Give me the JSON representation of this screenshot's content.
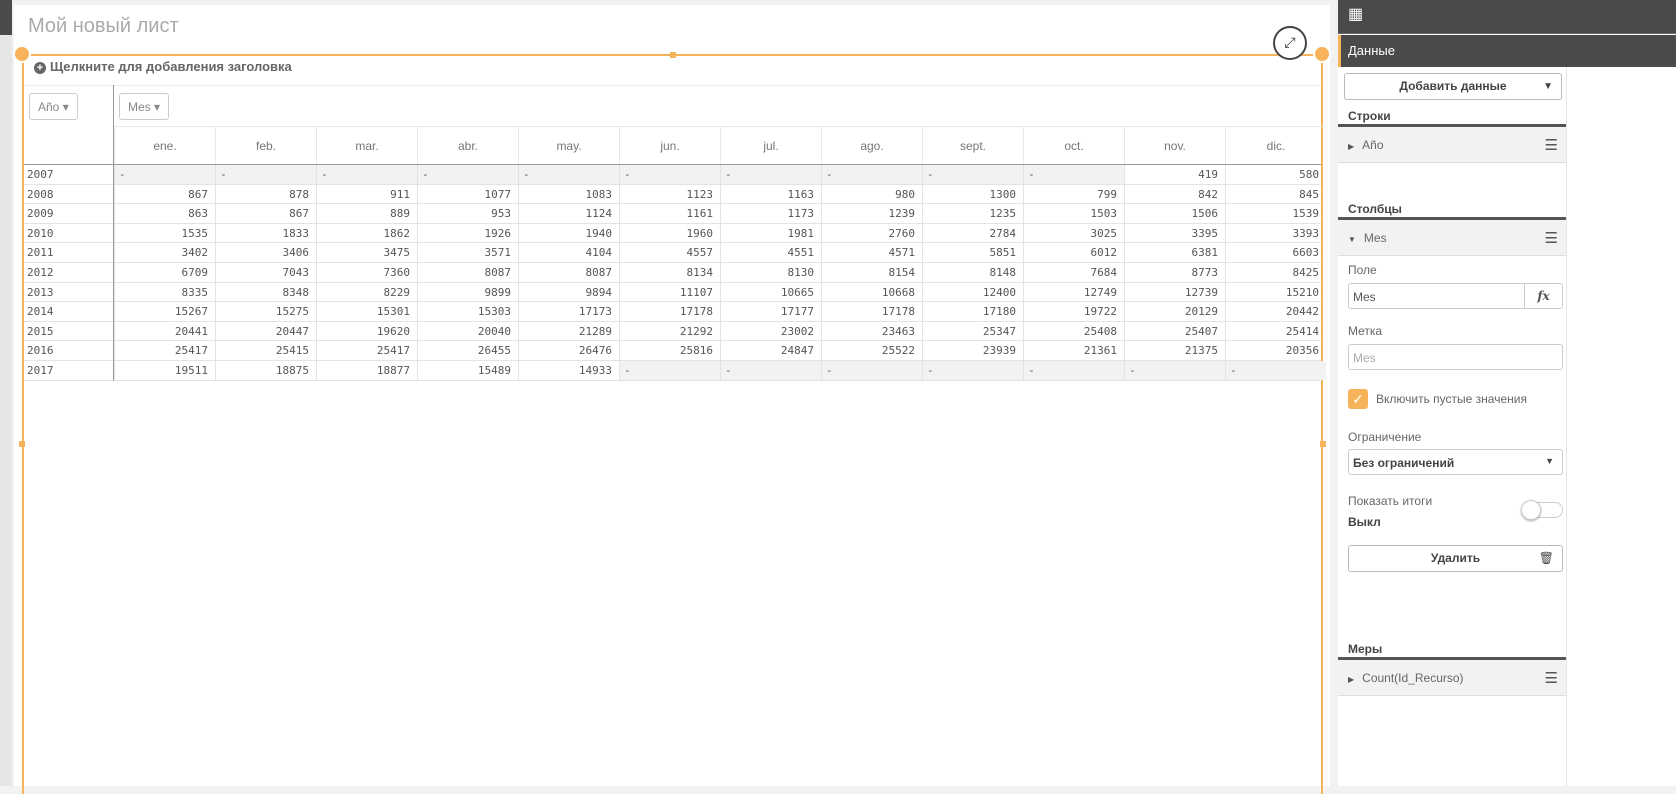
{
  "sheet": {
    "title": "Мой новый лист",
    "add_title": "Щелкните для добавления заголовка"
  },
  "accent": "#f7b35a",
  "pivot": {
    "row_dim": "Año",
    "col_dim": "Mes",
    "columns": [
      "ene.",
      "feb.",
      "mar.",
      "abr.",
      "may.",
      "jun.",
      "jul.",
      "ago.",
      "sept.",
      "oct.",
      "nov.",
      "dic."
    ],
    "rows": [
      {
        "year": "2007",
        "values": [
          "-",
          "-",
          "-",
          "-",
          "-",
          "-",
          "-",
          "-",
          "-",
          "-",
          "419",
          "580"
        ]
      },
      {
        "year": "2008",
        "values": [
          "867",
          "878",
          "911",
          "1077",
          "1083",
          "1123",
          "1163",
          "980",
          "1300",
          "799",
          "842",
          "845"
        ]
      },
      {
        "year": "2009",
        "values": [
          "863",
          "867",
          "889",
          "953",
          "1124",
          "1161",
          "1173",
          "1239",
          "1235",
          "1503",
          "1506",
          "1539"
        ]
      },
      {
        "year": "2010",
        "values": [
          "1535",
          "1833",
          "1862",
          "1926",
          "1940",
          "1960",
          "1981",
          "2760",
          "2784",
          "3025",
          "3395",
          "3393"
        ]
      },
      {
        "year": "2011",
        "values": [
          "3402",
          "3406",
          "3475",
          "3571",
          "4104",
          "4557",
          "4551",
          "4571",
          "5851",
          "6012",
          "6381",
          "6603"
        ]
      },
      {
        "year": "2012",
        "values": [
          "6709",
          "7043",
          "7360",
          "8087",
          "8087",
          "8134",
          "8130",
          "8154",
          "8148",
          "7684",
          "8773",
          "8425"
        ]
      },
      {
        "year": "2013",
        "values": [
          "8335",
          "8348",
          "8229",
          "9899",
          "9894",
          "11107",
          "10665",
          "10668",
          "12400",
          "12749",
          "12739",
          "15210"
        ]
      },
      {
        "year": "2014",
        "values": [
          "15267",
          "15275",
          "15301",
          "15303",
          "17173",
          "17178",
          "17177",
          "17178",
          "17180",
          "19722",
          "20129",
          "20442"
        ]
      },
      {
        "year": "2015",
        "values": [
          "20441",
          "20447",
          "19620",
          "20040",
          "21289",
          "21292",
          "23002",
          "23463",
          "25347",
          "25408",
          "25407",
          "25414"
        ]
      },
      {
        "year": "2016",
        "values": [
          "25417",
          "25415",
          "25417",
          "26455",
          "26476",
          "25816",
          "24847",
          "25522",
          "23939",
          "21361",
          "21375",
          "20356"
        ]
      },
      {
        "year": "2017",
        "values": [
          "19511",
          "18875",
          "18877",
          "15489",
          "14933",
          "-",
          "-",
          "-",
          "-",
          "-",
          "-",
          "-"
        ]
      }
    ]
  },
  "panel": {
    "tab": "Данные",
    "add_data": "Добавить данные",
    "rows_section": "Строки",
    "rows_item": "Año",
    "cols_section": "Столбцы",
    "cols_item": "Mes",
    "field_label": "Поле",
    "field_value": "Mes",
    "fx": "fx",
    "label_label": "Метка",
    "label_placeholder": "Mes",
    "include_nulls": "Включить пустые значения",
    "include_nulls_checked": true,
    "limit_label": "Ограничение",
    "limit_value": "Без ограничений",
    "totals_label": "Показать итоги",
    "totals_value": "Выкл",
    "totals_on": false,
    "delete": "Удалить",
    "measures_section": "Меры",
    "measure_item": "Count(Id_Recurso)"
  }
}
